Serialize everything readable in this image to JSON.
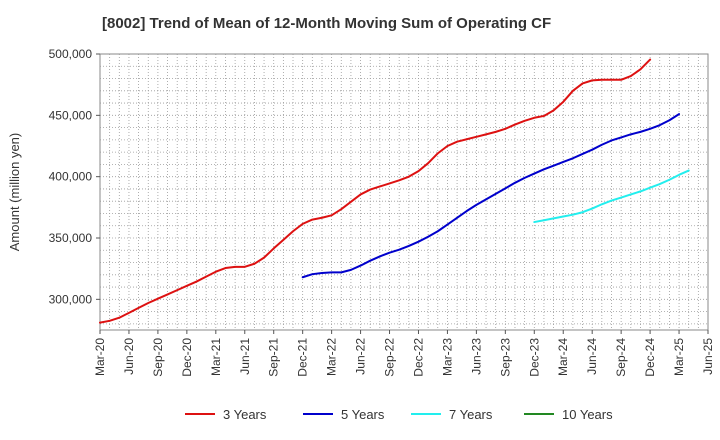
{
  "chart_data": {
    "type": "line",
    "title": "[8002]  Trend of Mean of 12-Month Moving Sum of Operating CF",
    "xlabel": "",
    "ylabel": "Amount (million yen)",
    "ylim": [
      275000,
      500000
    ],
    "yticks": [
      300000,
      350000,
      400000,
      450000,
      500000
    ],
    "ytick_labels": [
      "300,000",
      "350,000",
      "400,000",
      "450,000",
      "500,000"
    ],
    "xtick_labels": [
      "Mar-20",
      "Jun-20",
      "Sep-20",
      "Dec-20",
      "Mar-21",
      "Jun-21",
      "Sep-21",
      "Dec-21",
      "Mar-22",
      "Jun-22",
      "Sep-22",
      "Dec-22",
      "Mar-23",
      "Jun-23",
      "Sep-23",
      "Dec-23",
      "Mar-24",
      "Jun-24",
      "Sep-24",
      "Dec-24",
      "Mar-25",
      "Jun-25"
    ],
    "x_range_months": [
      0,
      63
    ],
    "grid": true,
    "legend_position": "bottom",
    "series": [
      {
        "name": "3 Years",
        "color": "#dd1111",
        "start_month": 0,
        "values": [
          281000,
          282500,
          285000,
          289000,
          293000,
          297000,
          300500,
          304000,
          307500,
          311000,
          314500,
          318500,
          322500,
          325500,
          326500,
          326500,
          329000,
          334000,
          341500,
          348500,
          355500,
          361500,
          365000,
          366500,
          368500,
          373500,
          379500,
          385500,
          389500,
          392000,
          394500,
          397000,
          400000,
          404500,
          411000,
          419000,
          425000,
          428500,
          430500,
          432500,
          434500,
          436500,
          439000,
          442500,
          445500,
          448000,
          449500,
          454000,
          461000,
          470000,
          476000,
          478500,
          479000,
          479000,
          479000,
          482000,
          487500,
          495500
        ]
      },
      {
        "name": "5 Years",
        "color": "#0000cc",
        "start_month": 21,
        "values": [
          318000,
          320500,
          321500,
          322000,
          322000,
          324000,
          327500,
          331500,
          335000,
          338000,
          340500,
          343500,
          347000,
          351000,
          355500,
          361000,
          366500,
          372000,
          377000,
          381500,
          386000,
          390500,
          395000,
          399000,
          402500,
          406000,
          409000,
          412000,
          415000,
          418500,
          422000,
          426000,
          429500,
          432000,
          434500,
          436500,
          439000,
          442000,
          446000,
          451000
        ]
      },
      {
        "name": "7 Years",
        "color": "#22eeee",
        "start_month": 45,
        "values": [
          363000,
          364500,
          366000,
          367500,
          369000,
          371000,
          374000,
          377500,
          380500,
          383000,
          385500,
          388000,
          391000,
          394000,
          397500,
          401500,
          405000
        ]
      },
      {
        "name": "10 Years",
        "color": "#228822",
        "start_month": 0,
        "values": []
      }
    ]
  }
}
